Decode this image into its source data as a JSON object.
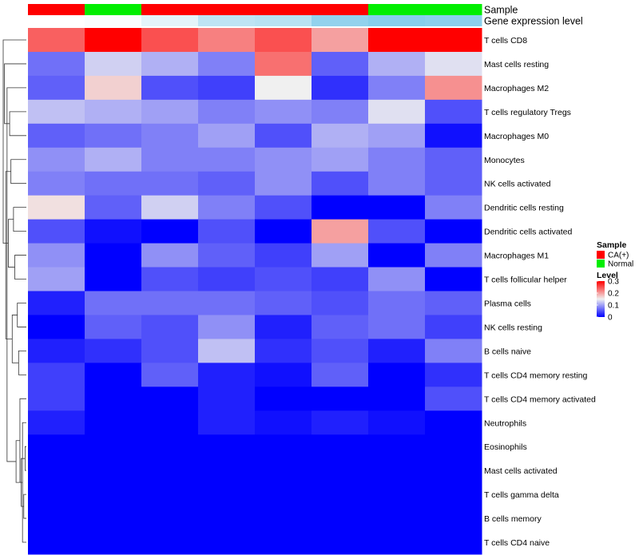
{
  "chart_data": {
    "type": "heatmap",
    "annotation_rows": [
      {
        "label": "Sample",
        "values": [
          "CA(+)",
          "Normal",
          "CA(+)",
          "CA(+)",
          "CA(+)",
          "CA(+)",
          "Normal",
          "Normal"
        ]
      },
      {
        "label": "Gene expression level",
        "values": [
          0.02,
          0.03,
          0.07,
          0.14,
          0.15,
          0.22,
          0.24,
          0.23
        ]
      }
    ],
    "row_labels": [
      "T cells CD8",
      "Mast cells resting",
      "Macrophages M2",
      "T cells regulatory  Tregs",
      "Macrophages M0",
      "Monocytes",
      "NK cells activated",
      "Dendritic cells resting",
      "Dendritic cells activated",
      "Macrophages M1",
      "T cells follicular helper",
      "Plasma cells",
      "NK cells resting",
      "B cells naive",
      "T cells CD4 memory resting",
      "T cells CD4 memory activated",
      "Neutrophils",
      "Eosinophils",
      "Mast cells activated",
      "T cells gamma delta",
      "B cells memory",
      "T cells CD4 naive"
    ],
    "values": [
      [
        0.24,
        0.3,
        0.25,
        0.22,
        0.25,
        0.2,
        0.3,
        0.3
      ],
      [
        0.07,
        0.13,
        0.11,
        0.08,
        0.23,
        0.06,
        0.11,
        0.14
      ],
      [
        0.06,
        0.17,
        0.05,
        0.04,
        0.15,
        0.03,
        0.08,
        0.21
      ],
      [
        0.12,
        0.11,
        0.1,
        0.08,
        0.09,
        0.08,
        0.14,
        0.05
      ],
      [
        0.06,
        0.07,
        0.08,
        0.1,
        0.05,
        0.11,
        0.1,
        0.01
      ],
      [
        0.09,
        0.11,
        0.08,
        0.08,
        0.09,
        0.1,
        0.08,
        0.06
      ],
      [
        0.08,
        0.07,
        0.07,
        0.06,
        0.09,
        0.05,
        0.08,
        0.06
      ],
      [
        0.16,
        0.06,
        0.13,
        0.08,
        0.05,
        0.0,
        0.0,
        0.08
      ],
      [
        0.05,
        0.01,
        0.0,
        0.05,
        0.0,
        0.2,
        0.05,
        0.0
      ],
      [
        0.09,
        0.0,
        0.09,
        0.06,
        0.04,
        0.1,
        0.0,
        0.08
      ],
      [
        0.1,
        0.0,
        0.05,
        0.04,
        0.05,
        0.04,
        0.09,
        0.0
      ],
      [
        0.02,
        0.07,
        0.07,
        0.07,
        0.06,
        0.05,
        0.07,
        0.06
      ],
      [
        0.0,
        0.06,
        0.05,
        0.09,
        0.02,
        0.06,
        0.07,
        0.04
      ],
      [
        0.02,
        0.03,
        0.05,
        0.12,
        0.03,
        0.05,
        0.02,
        0.08
      ],
      [
        0.04,
        0.0,
        0.06,
        0.02,
        0.01,
        0.06,
        0.0,
        0.03
      ],
      [
        0.04,
        0.0,
        0.0,
        0.02,
        0.0,
        0.0,
        0.0,
        0.05
      ],
      [
        0.02,
        0.0,
        0.0,
        0.02,
        0.01,
        0.02,
        0.01,
        0.0
      ],
      [
        0.0,
        0.0,
        0.0,
        0.0,
        0.0,
        0.0,
        0.0,
        0.0
      ],
      [
        0.0,
        0.0,
        0.0,
        0.0,
        0.0,
        0.0,
        0.0,
        0.0
      ],
      [
        0.0,
        0.0,
        0.0,
        0.0,
        0.0,
        0.0,
        0.0,
        0.0
      ],
      [
        0.0,
        0.0,
        0.0,
        0.0,
        0.0,
        0.0,
        0.0,
        0.0
      ],
      [
        0.0,
        0.0,
        0.0,
        0.0,
        0.0,
        0.0,
        0.0,
        0.0
      ]
    ],
    "color_scale": {
      "min": 0,
      "mid": 0.15,
      "max": 0.3,
      "low": "#0000ff",
      "mid_color": "#f0f0f0",
      "high": "#ff0000"
    },
    "dendrogram": {
      "merge_order": [
        [
          17,
          18
        ],
        [
          19,
          20
        ],
        [
          21,
          16
        ],
        [
          22,
          23
        ],
        [
          24,
          15
        ],
        [
          14,
          13
        ],
        [
          12,
          11
        ],
        [
          25,
          26
        ],
        [
          10,
          9
        ],
        [
          8,
          7
        ],
        [
          28,
          27
        ],
        [
          6,
          5
        ],
        [
          4,
          3
        ],
        [
          30,
          31
        ],
        [
          29,
          2
        ],
        [
          33,
          32
        ],
        [
          1,
          34
        ],
        [
          0,
          35
        ]
      ]
    },
    "legend": {
      "sample_title": "Sample",
      "sample_items": [
        {
          "label": "CA(+)",
          "color": "#ff0000"
        },
        {
          "label": "Normal",
          "color": "#00ee00"
        }
      ],
      "level_title": "Level",
      "level_ticks": [
        "0.3",
        "0.2",
        "0.1",
        "0"
      ]
    },
    "expression_colors": [
      "#ffffff",
      "#87ceeb"
    ]
  }
}
